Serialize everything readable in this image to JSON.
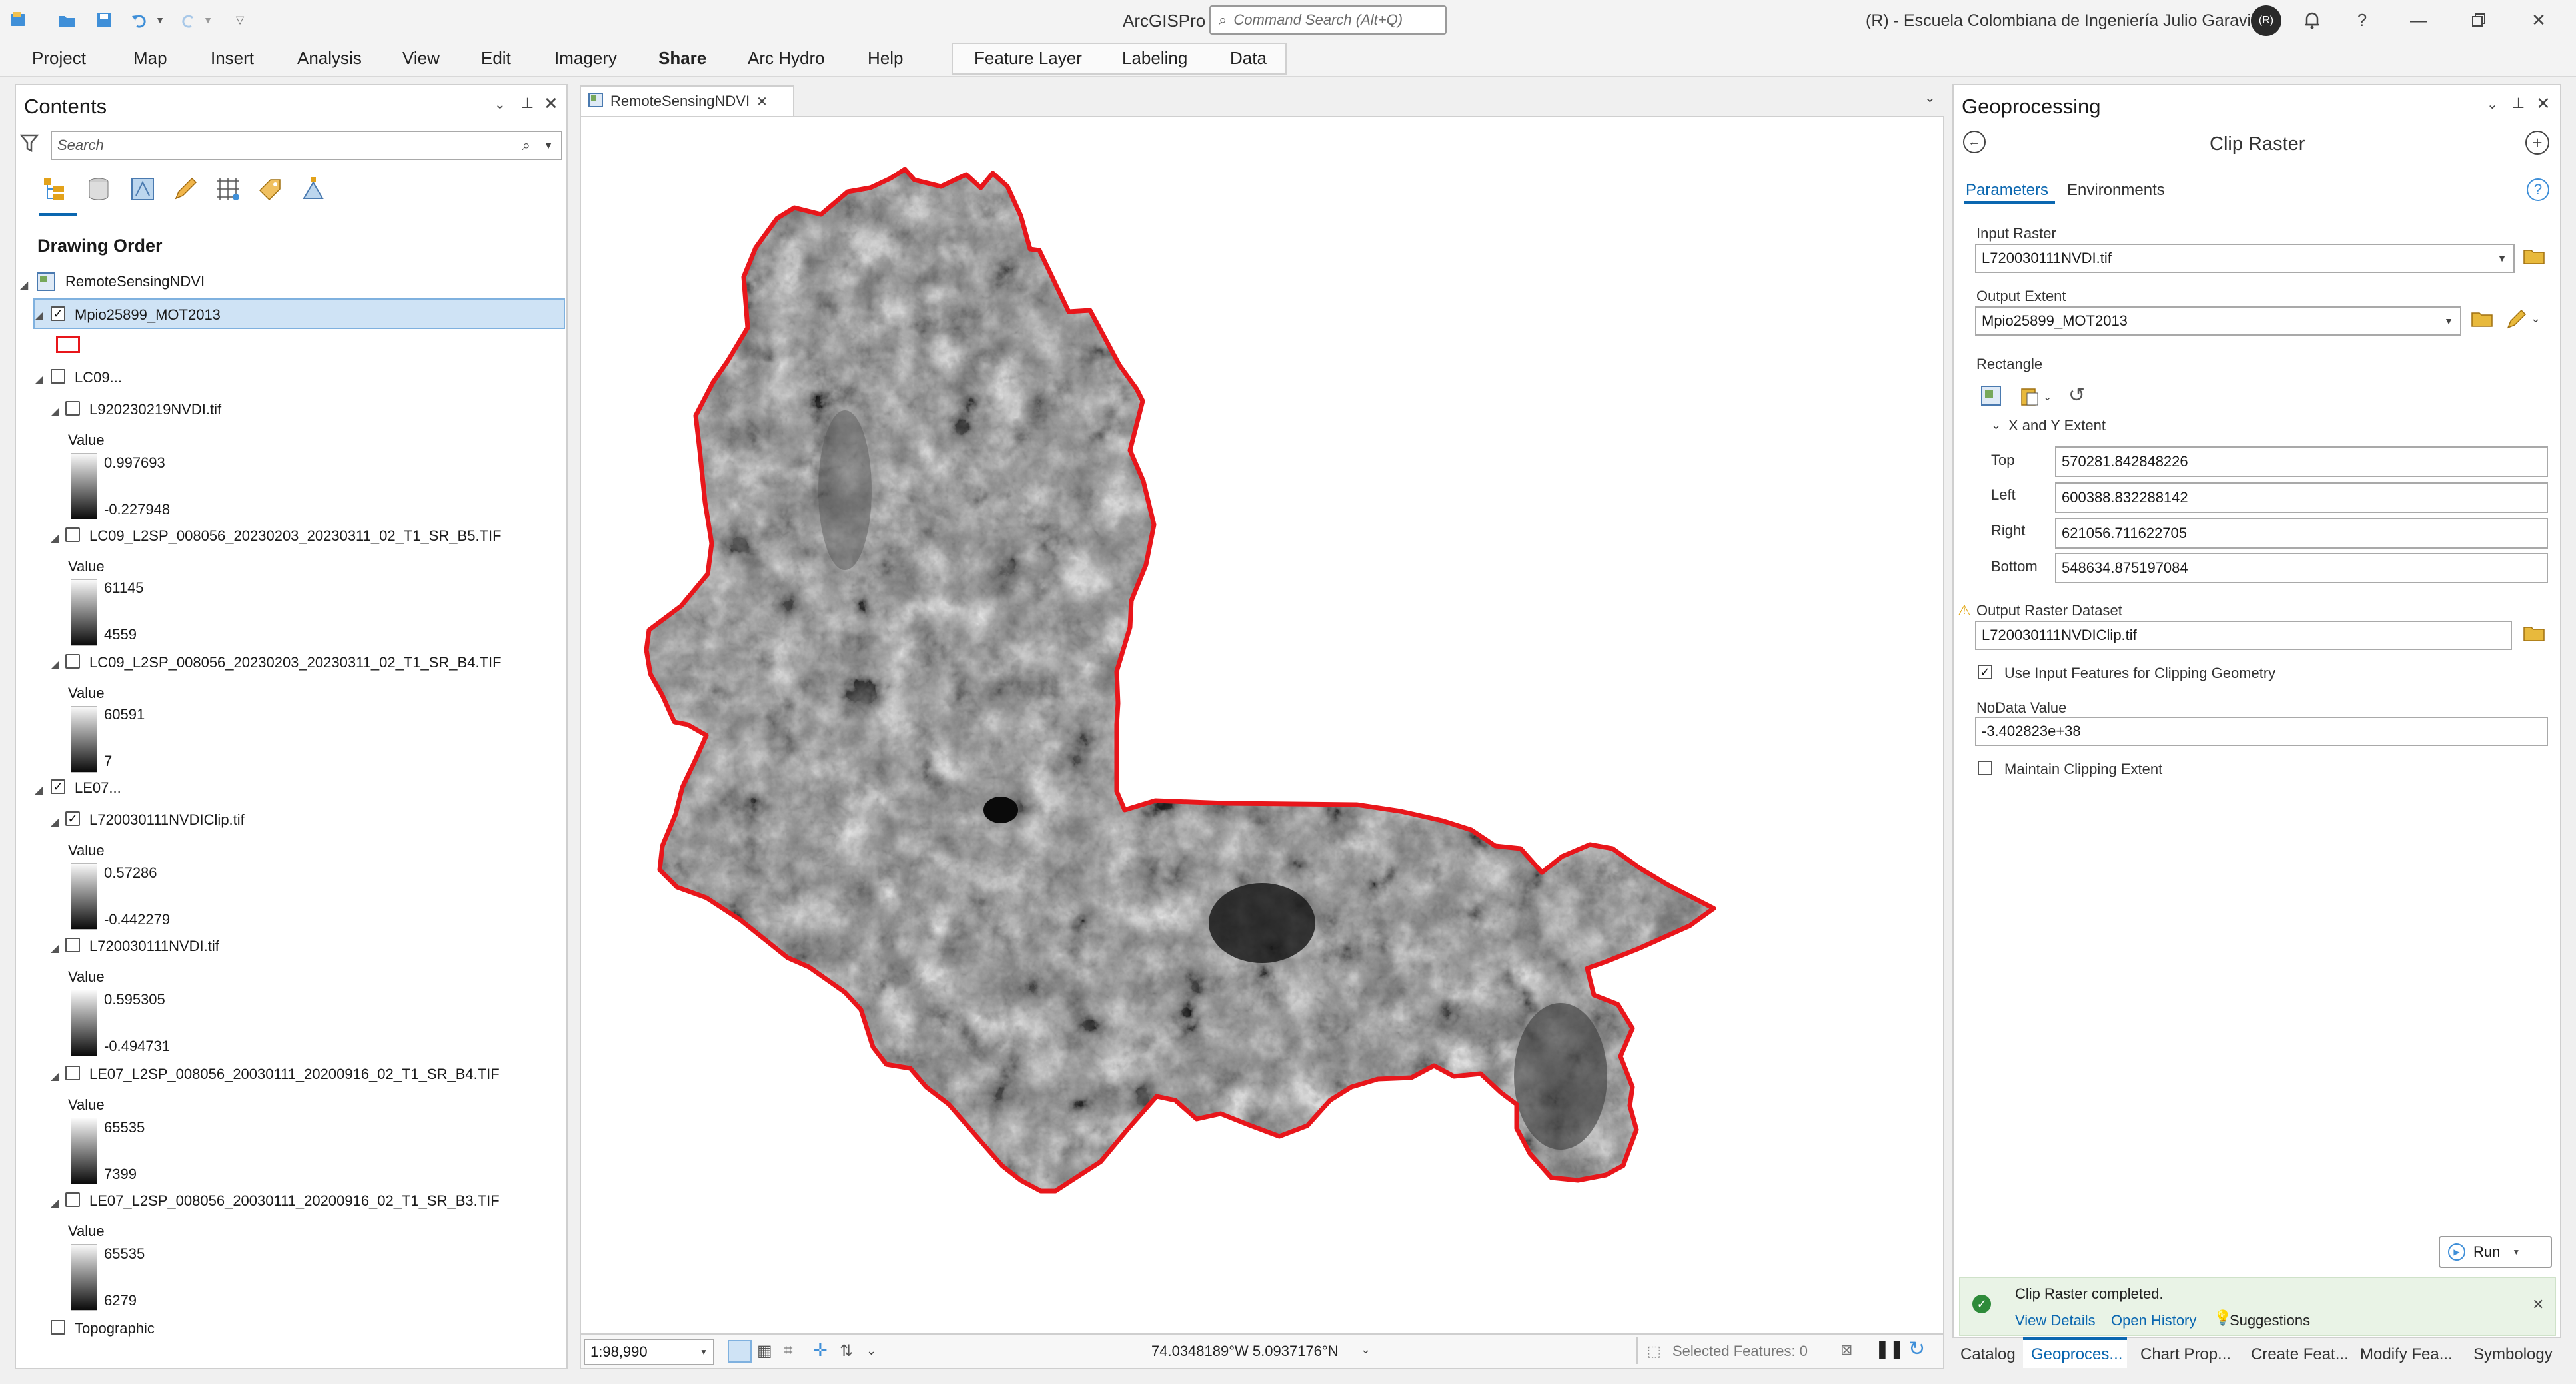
{
  "app": {
    "name": "ArcGISPro",
    "command_search_placeholder": "Command Search (Alt+Q)",
    "org": "(R) - Escuela Colombiana de Ingeniería Julio Garavito",
    "avatar_initials": "(R)"
  },
  "ribbon": {
    "tabs": [
      "Project",
      "Map",
      "Insert",
      "Analysis",
      "View",
      "Edit",
      "Imagery",
      "Share",
      "Arc Hydro",
      "Help"
    ],
    "active_tab": "Share",
    "context_tabs": [
      "Feature Layer",
      "Labeling",
      "Data"
    ]
  },
  "contents": {
    "title": "Contents",
    "search_placeholder": "Search",
    "drawing_order": "Drawing Order",
    "map_name": "RemoteSensingNDVI",
    "layers": [
      {
        "name": "Mpio25899_MOT2013",
        "checked": true,
        "selected": true
      },
      {
        "name": "LC09...",
        "checked": false
      },
      {
        "name": "L920230219NVDI.tif",
        "checked": false,
        "value_label": "Value",
        "max": "0.997693",
        "min": "-0.227948"
      },
      {
        "name": "LC09_L2SP_008056_20230203_20230311_02_T1_SR_B5.TIF",
        "checked": false,
        "value_label": "Value",
        "max": "61145",
        "min": "4559"
      },
      {
        "name": "LC09_L2SP_008056_20230203_20230311_02_T1_SR_B4.TIF",
        "checked": false,
        "value_label": "Value",
        "max": "60591",
        "min": "7"
      },
      {
        "name": "LE07...",
        "checked": true
      },
      {
        "name": "L720030111NVDIClip.tif",
        "checked": true,
        "value_label": "Value",
        "max": "0.57286",
        "min": "-0.442279"
      },
      {
        "name": "L720030111NVDI.tif",
        "checked": false,
        "value_label": "Value",
        "max": "0.595305",
        "min": "-0.494731"
      },
      {
        "name": "LE07_L2SP_008056_20030111_20200916_02_T1_SR_B4.TIF",
        "checked": false,
        "value_label": "Value",
        "max": "65535",
        "min": "7399"
      },
      {
        "name": "LE07_L2SP_008056_20030111_20200916_02_T1_SR_B3.TIF",
        "checked": false,
        "value_label": "Value",
        "max": "65535",
        "min": "6279"
      },
      {
        "name": "Topographic",
        "checked": false
      }
    ]
  },
  "map": {
    "tab_name": "RemoteSensingNDVI",
    "scale": "1:98,990",
    "coordinates": "74.0348189°W 5.0937176°N",
    "selected_features": "Selected Features: 0",
    "boundary_color": "#e8161b"
  },
  "geoprocessing": {
    "title": "Geoprocessing",
    "tool": "Clip Raster",
    "tabs": [
      "Parameters",
      "Environments"
    ],
    "active_tab": "Parameters",
    "input_raster_label": "Input Raster",
    "input_raster": "L720030111NVDI.tif",
    "output_extent_label": "Output Extent",
    "output_extent": "Mpio25899_MOT2013",
    "rectangle_label": "Rectangle",
    "xy_extent_label": "X and Y Extent",
    "top_label": "Top",
    "top": "570281.842848226",
    "left_label": "Left",
    "left": "600388.832288142",
    "right_label": "Right",
    "right": "621056.711622705",
    "bottom_label": "Bottom",
    "bottom": "548634.875197084",
    "output_dataset_label": "Output Raster Dataset",
    "output_dataset": "L720030111NVDIClip.tif",
    "use_input_features_label": "Use Input Features for Clipping Geometry",
    "use_input_features": true,
    "nodata_label": "NoData Value",
    "nodata": "-3.402823e+38",
    "maintain_extent_label": "Maintain Clipping Extent",
    "maintain_extent": false,
    "run_label": "Run",
    "status_message": "Clip Raster completed.",
    "view_details": "View Details",
    "open_history": "Open History",
    "suggestions": "Suggestions"
  },
  "bottom_tabs": [
    "Catalog",
    "Geoproces...",
    "Chart Prop...",
    "Create Feat...",
    "Modify Fea...",
    "Symbology"
  ]
}
